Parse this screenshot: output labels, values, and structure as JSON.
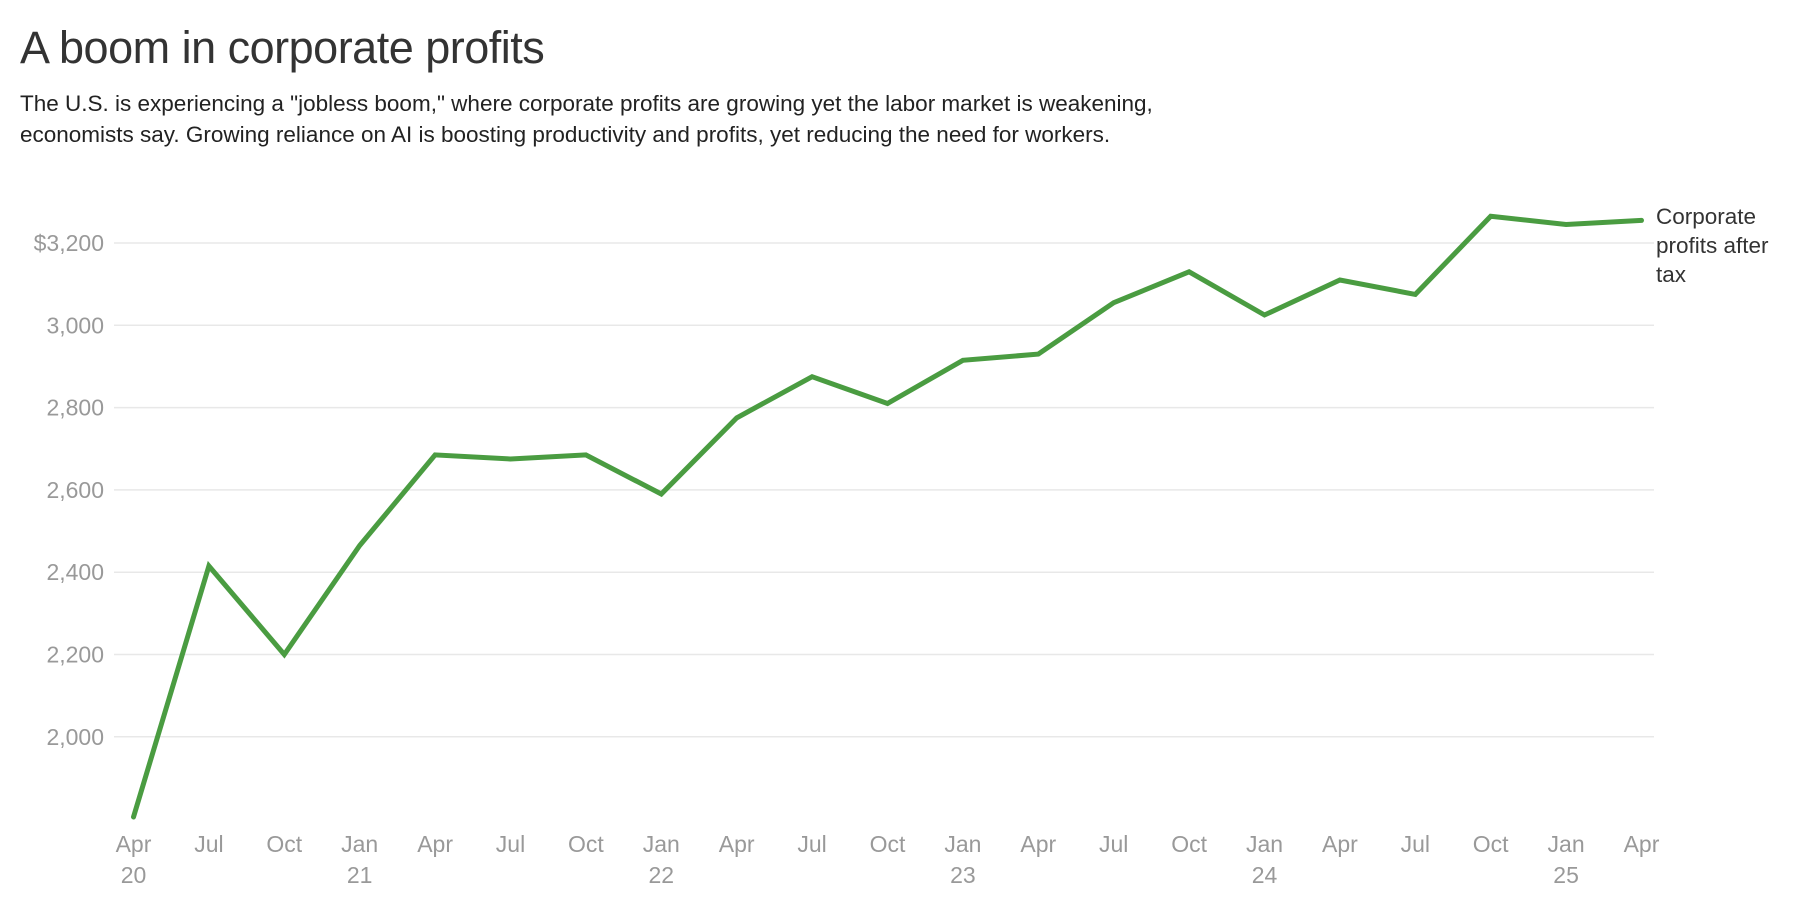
{
  "chart_data": {
    "type": "line",
    "title": "A boom in corporate profits",
    "subtitle_lines": [
      "The U.S. is experiencing a \"jobless boom,\" where corporate profits are growing yet the labor market is weakening,",
      "economists say. Growing reliance on AI is boosting productivity and profits, yet reducing the need for workers."
    ],
    "x": [
      "Apr 20",
      "Jul",
      "Oct",
      "Jan 21",
      "Apr",
      "Jul",
      "Oct",
      "Jan 22",
      "Apr",
      "Jul",
      "Oct",
      "Jan 23",
      "Apr",
      "Jul",
      "Oct",
      "Jan 24",
      "Apr",
      "Jul",
      "Oct",
      "Jan 25",
      "Apr"
    ],
    "series": [
      {
        "name": "Corporate profits after tax",
        "values": [
          1805,
          2415,
          2200,
          2465,
          2685,
          2675,
          2685,
          2590,
          2775,
          2875,
          2810,
          2915,
          2930,
          3055,
          3130,
          3025,
          3110,
          3075,
          3265,
          3245,
          3255
        ]
      }
    ],
    "y_ticks": [
      {
        "value": 3200,
        "label": "$3,200"
      },
      {
        "value": 3000,
        "label": "3,000"
      },
      {
        "value": 2800,
        "label": "2,800"
      },
      {
        "value": 2600,
        "label": "2,600"
      },
      {
        "value": 2400,
        "label": "2,400"
      },
      {
        "value": 2200,
        "label": "2,200"
      },
      {
        "value": 2000,
        "label": "2,000"
      }
    ],
    "ylim": [
      1780,
      3330
    ],
    "xlabel": "",
    "ylabel": "",
    "grid": "horizontal",
    "legend_position": "right",
    "colors": {
      "line": "#4a9c41",
      "grid": "#e8e8e8",
      "tick_text": "#999999",
      "title_text": "#333333",
      "body_text": "#222222"
    }
  }
}
